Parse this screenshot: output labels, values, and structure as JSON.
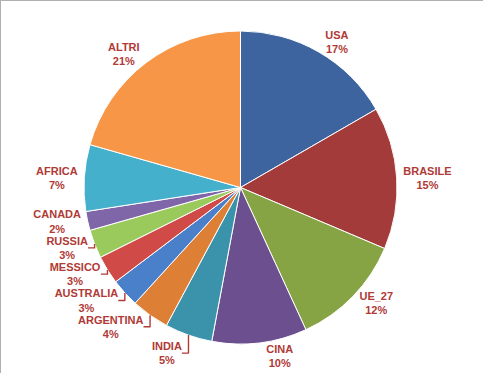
{
  "chart_data": {
    "type": "pie",
    "categories": [
      "USA",
      "BRASILE",
      "UE_27",
      "CINA",
      "INDIA",
      "ARGENTINA",
      "AUSTRALIA",
      "MESSICO",
      "RUSSIA",
      "CANADA",
      "AFRICA",
      "ALTRI"
    ],
    "values": [
      17,
      15,
      12,
      10,
      5,
      4,
      3,
      3,
      3,
      2,
      7,
      21
    ],
    "value_labels": [
      "17%",
      "15%",
      "12%",
      "10%",
      "5%",
      "4%",
      "3%",
      "3%",
      "3%",
      "2%",
      "7%",
      "21%"
    ],
    "colors": [
      "#3E64A0",
      "#A33B3A",
      "#86A443",
      "#6B4F8E",
      "#3A93AA",
      "#DD8035",
      "#4A7FC9",
      "#D04A47",
      "#9ACA5C",
      "#7F66A8",
      "#45B0CC",
      "#F79646"
    ],
    "data_labels": true
  }
}
